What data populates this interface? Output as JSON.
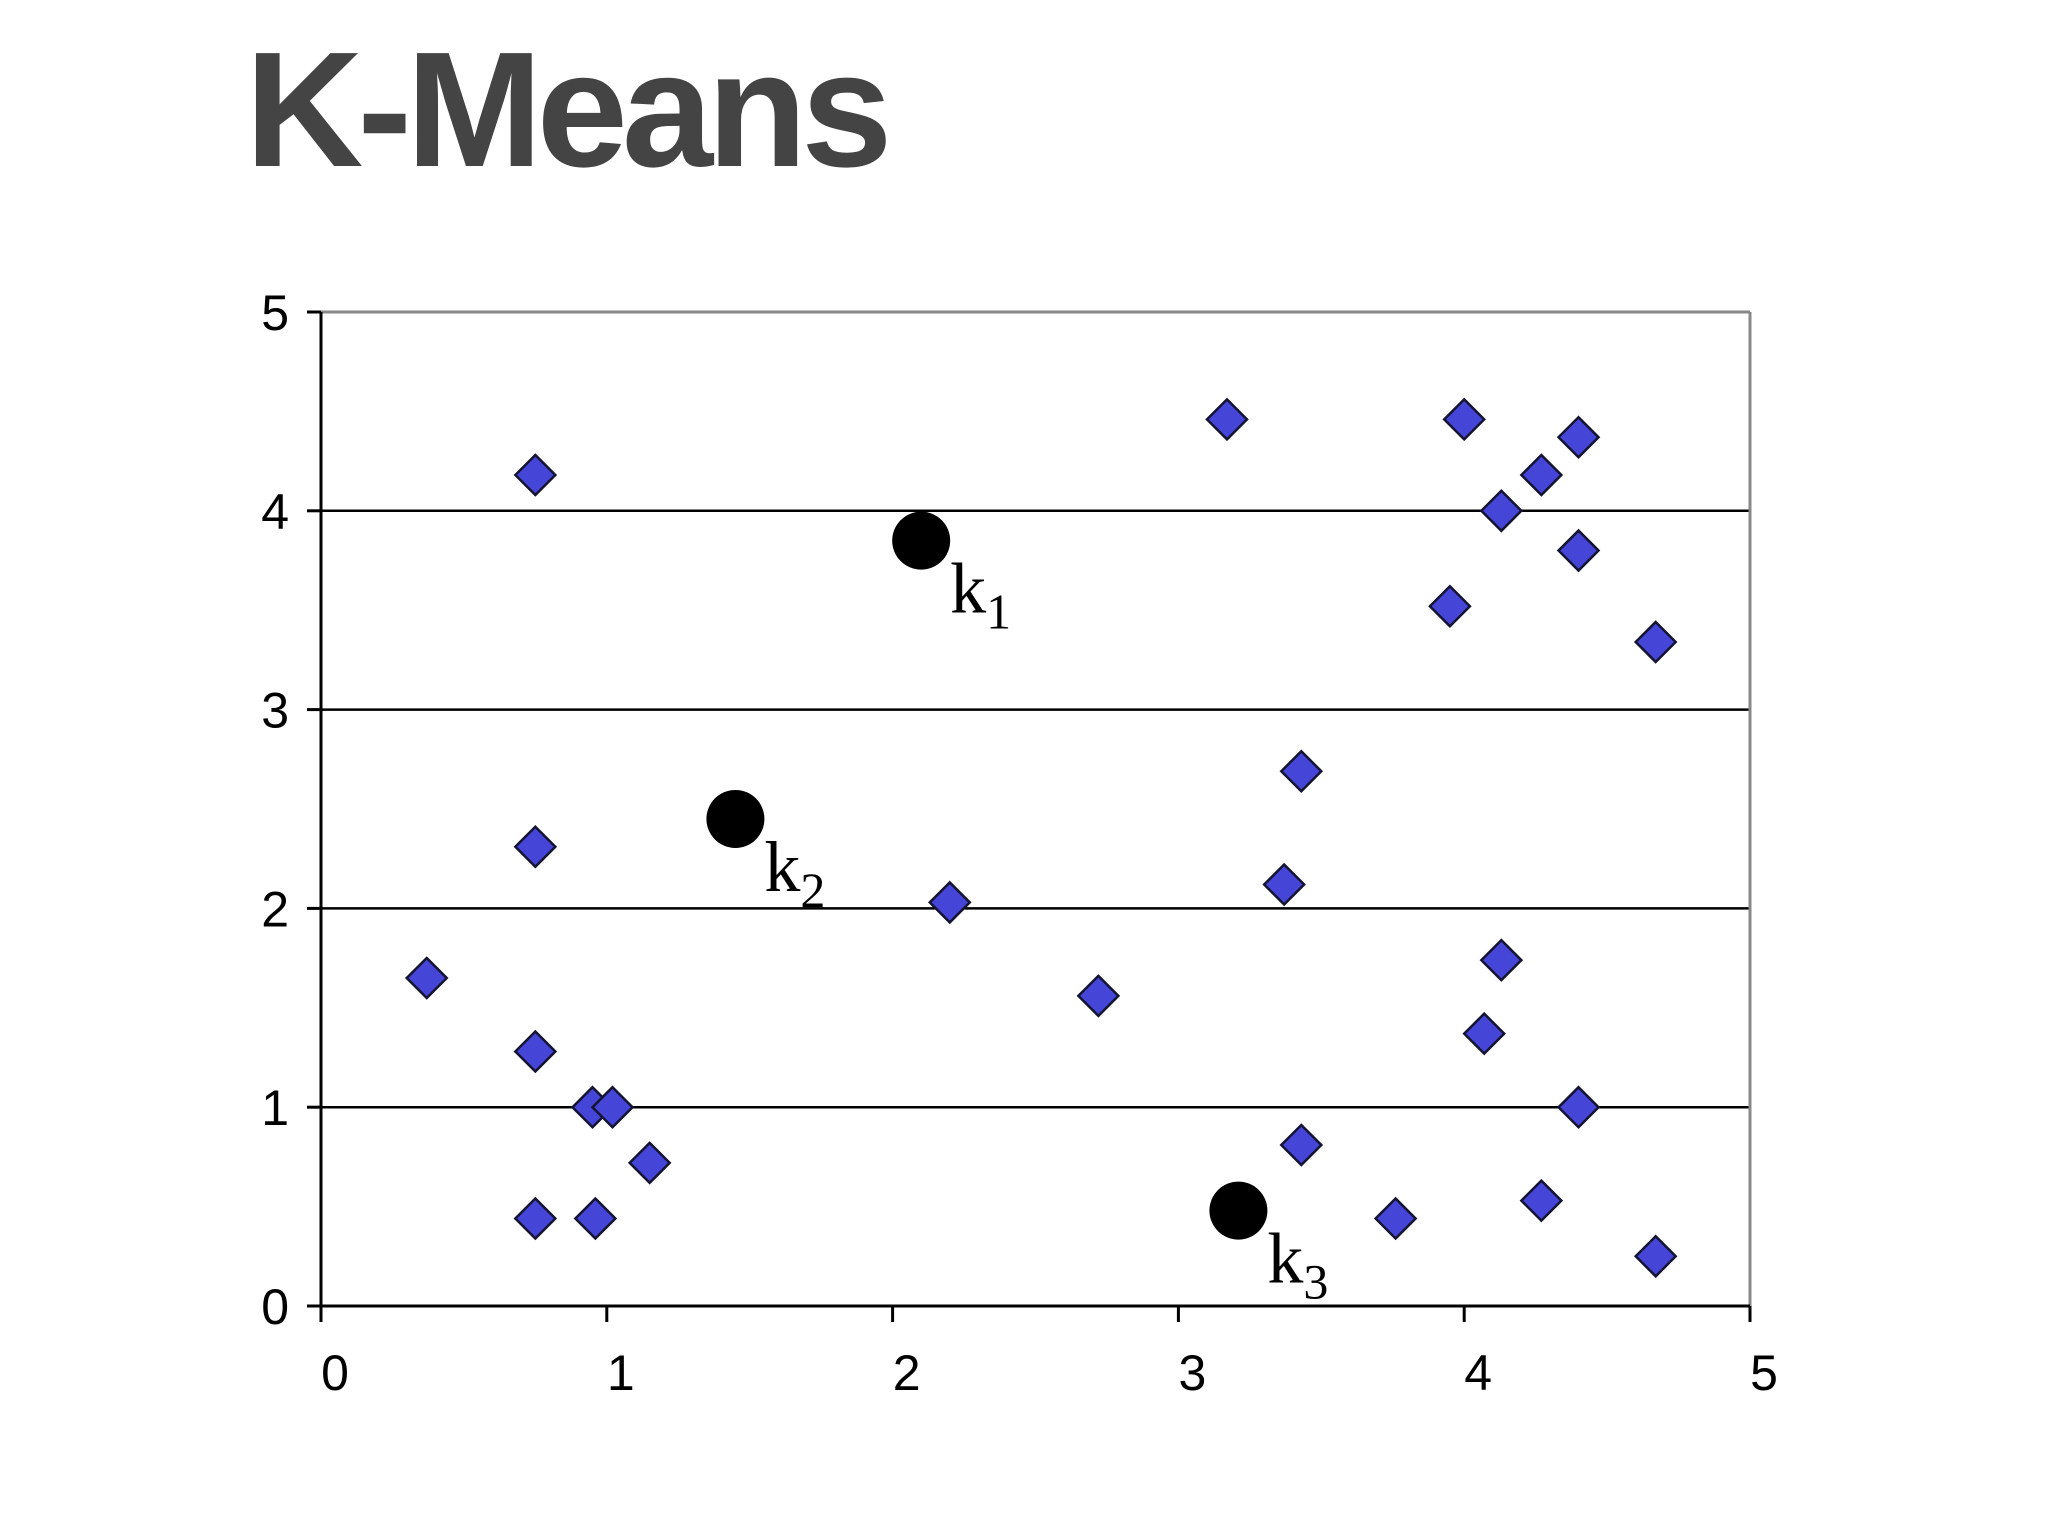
{
  "page": {
    "title": "K-Means"
  },
  "colors": {
    "point_fill": "#4545d8",
    "point_stroke": "#141432",
    "centroid": "#000000",
    "grid": "#000000",
    "frame": "#888888",
    "title": "#444444"
  },
  "chart_data": {
    "type": "scatter",
    "title": "",
    "xlabel": "",
    "ylabel": "",
    "xlim": [
      0,
      5
    ],
    "ylim": [
      0,
      5
    ],
    "x_ticks": [
      "0",
      "1",
      "2",
      "3",
      "4",
      "5"
    ],
    "y_ticks": [
      "0",
      "1",
      "2",
      "3",
      "4",
      "5"
    ],
    "grid": "horizontal",
    "legend": "none",
    "series": [
      {
        "marker": "diamond",
        "points": [
          [
            0.75,
            4.18
          ],
          [
            0.75,
            2.31
          ],
          [
            0.37,
            1.65
          ],
          [
            0.75,
            1.28
          ],
          [
            0.95,
            1.0
          ],
          [
            1.02,
            1.0
          ],
          [
            1.15,
            0.72
          ],
          [
            0.75,
            0.44
          ],
          [
            0.96,
            0.44
          ],
          [
            2.2,
            2.03
          ],
          [
            2.72,
            1.56
          ],
          [
            3.17,
            4.46
          ],
          [
            3.43,
            2.69
          ],
          [
            3.37,
            2.12
          ],
          [
            3.43,
            0.81
          ],
          [
            3.76,
            0.44
          ],
          [
            4.0,
            4.46
          ],
          [
            4.13,
            4.0
          ],
          [
            4.27,
            4.18
          ],
          [
            4.4,
            4.37
          ],
          [
            4.4,
            3.8
          ],
          [
            3.95,
            3.52
          ],
          [
            4.67,
            3.34
          ],
          [
            4.13,
            1.74
          ],
          [
            4.07,
            1.37
          ],
          [
            4.4,
            1.0
          ],
          [
            4.27,
            0.53
          ],
          [
            4.67,
            0.25
          ]
        ]
      }
    ],
    "centroids": [
      {
        "label": "k",
        "subscript": "1",
        "x": 2.1,
        "y": 3.85
      },
      {
        "label": "k",
        "subscript": "2",
        "x": 1.45,
        "y": 2.45
      },
      {
        "label": "k",
        "subscript": "3",
        "x": 3.21,
        "y": 0.48
      }
    ]
  }
}
